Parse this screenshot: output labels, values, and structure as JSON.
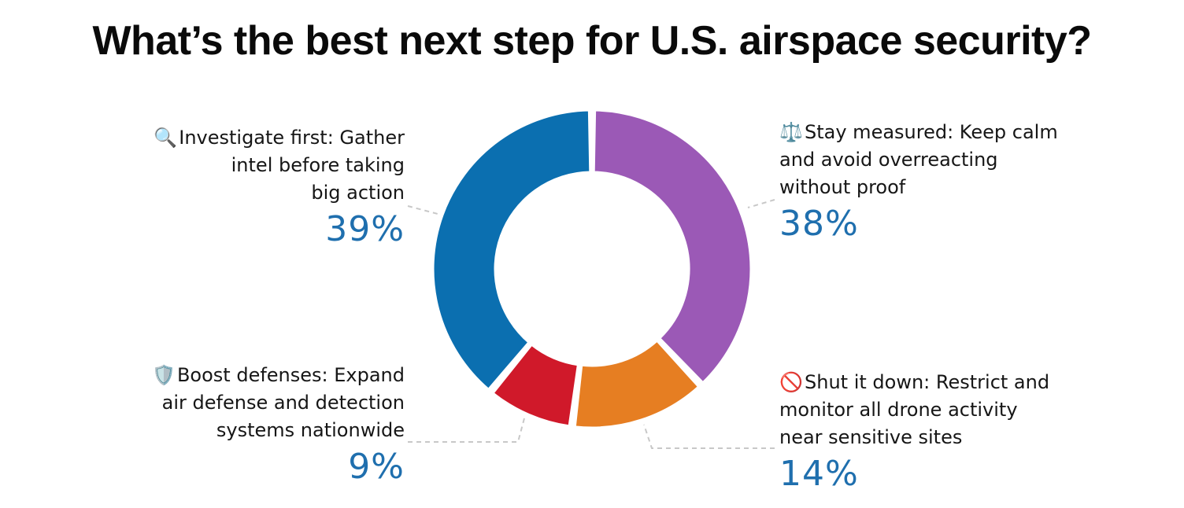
{
  "title": "What’s the best next step for U.S. airspace security?",
  "chart_data": {
    "type": "pie",
    "style": "donut",
    "title": "What’s the best next step for U.S. airspace security?",
    "slices": [
      {
        "label": "Stay measured: Keep calm and avoid overreacting without proof",
        "value": 38,
        "value_label": "38%",
        "color": "#9b59b6",
        "icon": "balance-scale-icon",
        "emoji": "⚖️"
      },
      {
        "label": "Shut it down: Restrict and monitor all drone activity near sensitive sites",
        "value": 14,
        "value_label": "14%",
        "color": "#e67e22",
        "icon": "no-entry-icon",
        "emoji": "🚫"
      },
      {
        "label": "Boost defenses: Expand air defense and detection systems nationwide",
        "value": 9,
        "value_label": "9%",
        "color": "#d0192a",
        "icon": "shield-icon",
        "emoji": "🛡️"
      },
      {
        "label": "Investigate first: Gather intel before taking big action",
        "value": 39,
        "value_label": "39%",
        "color": "#0b6fb0",
        "icon": "magnifying-glass-icon",
        "emoji": "🔍"
      }
    ]
  },
  "labels": {
    "investigate": {
      "line1": "Investigate first: Gather",
      "line2": "intel before taking",
      "line3": "big action",
      "pct": "39%",
      "emoji": "🔍"
    },
    "measured": {
      "line1": "Stay measured: Keep calm",
      "line2": "and avoid overreacting",
      "line3": "without proof",
      "pct": "38%",
      "emoji": "⚖️"
    },
    "defenses": {
      "line1": "Boost defenses: Expand",
      "line2": "air defense and detection",
      "line3": "systems nationwide",
      "pct": "9%",
      "emoji": "🛡️"
    },
    "shutdown": {
      "line1": "Shut it down: Restrict and",
      "line2": "monitor all drone activity",
      "line3": "near sensitive sites",
      "pct": "14%",
      "emoji": "🚫"
    }
  }
}
